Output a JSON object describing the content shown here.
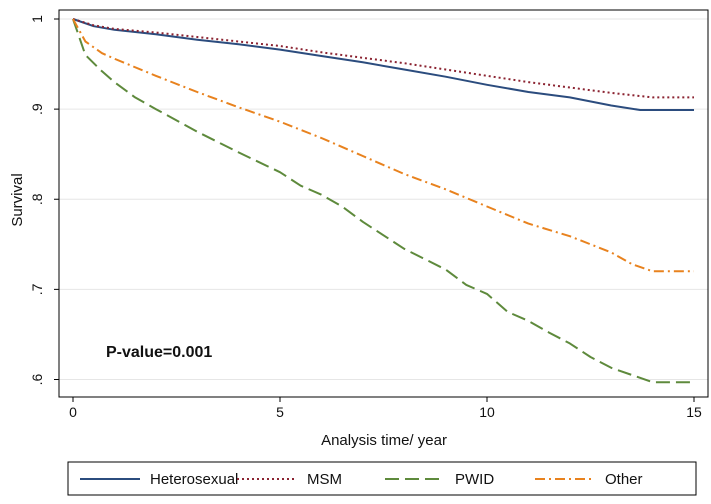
{
  "chart_data": {
    "type": "line",
    "title": "",
    "xlabel": "Analysis time/ year",
    "ylabel": "Survival",
    "xlim": [
      0,
      15
    ],
    "ylim": [
      0.595,
      1.0
    ],
    "xticks": [
      0,
      5,
      10,
      15
    ],
    "xtick_labels": [
      "0",
      "5",
      "10",
      "15"
    ],
    "yticks": [
      1.0,
      0.9,
      0.8,
      0.7,
      0.6
    ],
    "ytick_labels": [
      "1",
      ".9",
      ".8",
      ".7",
      ".6"
    ],
    "grid": true,
    "legend_position": "bottom",
    "annotation": "P-value=0.001",
    "series": [
      {
        "name": "Heterosexual",
        "color": "#2b4c7e",
        "style": "solid",
        "x": [
          0,
          0.5,
          1,
          2,
          3,
          4,
          5,
          6,
          7,
          8,
          9,
          10,
          11,
          12,
          13,
          13.7,
          15
        ],
        "y": [
          1.0,
          0.992,
          0.988,
          0.983,
          0.977,
          0.972,
          0.966,
          0.959,
          0.952,
          0.944,
          0.936,
          0.927,
          0.919,
          0.913,
          0.904,
          0.899,
          0.899
        ]
      },
      {
        "name": "MSM",
        "color": "#8b2331",
        "style": "dotted",
        "x": [
          0,
          0.5,
          1,
          2,
          3,
          4,
          5,
          6,
          7,
          8,
          9,
          10,
          11,
          12,
          13,
          14,
          15
        ],
        "y": [
          1.0,
          0.993,
          0.989,
          0.985,
          0.98,
          0.975,
          0.97,
          0.963,
          0.957,
          0.951,
          0.944,
          0.937,
          0.93,
          0.924,
          0.918,
          0.913,
          0.913
        ]
      },
      {
        "name": "PWID",
        "color": "#5e8a3c",
        "style": "longdash",
        "x": [
          0,
          0.3,
          0.7,
          1,
          1.5,
          2,
          3,
          4,
          5,
          5.5,
          6,
          6.5,
          7,
          8,
          9,
          9.5,
          10,
          10.5,
          11,
          11.5,
          12,
          12.5,
          13,
          13.5,
          14,
          15
        ],
        "y": [
          1.0,
          0.96,
          0.942,
          0.93,
          0.913,
          0.9,
          0.875,
          0.852,
          0.83,
          0.815,
          0.805,
          0.792,
          0.775,
          0.745,
          0.722,
          0.705,
          0.695,
          0.675,
          0.665,
          0.652,
          0.64,
          0.625,
          0.613,
          0.605,
          0.597,
          0.597
        ]
      },
      {
        "name": "Other",
        "color": "#e8821e",
        "style": "dashdot",
        "x": [
          0,
          0.3,
          0.7,
          1,
          2,
          3,
          4,
          5,
          6,
          7,
          8,
          9,
          10,
          11,
          12,
          13,
          13.5,
          14,
          15
        ],
        "y": [
          1.0,
          0.975,
          0.962,
          0.956,
          0.937,
          0.919,
          0.902,
          0.886,
          0.868,
          0.848,
          0.828,
          0.811,
          0.792,
          0.773,
          0.759,
          0.741,
          0.728,
          0.72,
          0.72
        ]
      }
    ]
  }
}
